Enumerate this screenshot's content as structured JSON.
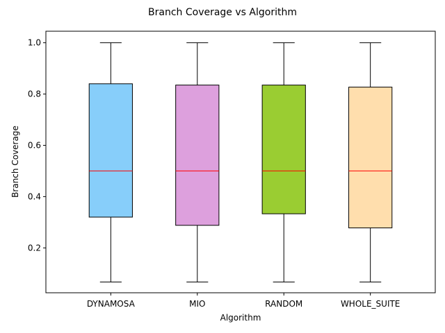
{
  "chart_data": {
    "type": "box",
    "title": "Branch Coverage vs Algorithm",
    "xlabel": "Algorithm",
    "ylabel": "Branch Coverage",
    "ylim": [
      0.025,
      1.045
    ],
    "yticks": [
      0.2,
      0.4,
      0.6,
      0.8,
      1.0
    ],
    "ytick_labels": [
      "0.2",
      "0.4",
      "0.6",
      "0.8",
      "1.0"
    ],
    "grid": false,
    "median_color": "#ff0000",
    "boxes": [
      {
        "category": "DYNAMOSA",
        "whisker_low": 0.067,
        "q1": 0.32,
        "median": 0.5,
        "q3": 0.84,
        "whisker_high": 1.0,
        "color": "#87cefa"
      },
      {
        "category": "MIO",
        "whisker_low": 0.067,
        "q1": 0.288,
        "median": 0.5,
        "q3": 0.835,
        "whisker_high": 1.0,
        "color": "#dda0dd"
      },
      {
        "category": "RANDOM",
        "whisker_low": 0.067,
        "q1": 0.333,
        "median": 0.5,
        "q3": 0.835,
        "whisker_high": 1.0,
        "color": "#9acd32"
      },
      {
        "category": "WHOLE_SUITE",
        "whisker_low": 0.067,
        "q1": 0.278,
        "median": 0.5,
        "q3": 0.827,
        "whisker_high": 1.0,
        "color": "#ffdead"
      }
    ]
  }
}
